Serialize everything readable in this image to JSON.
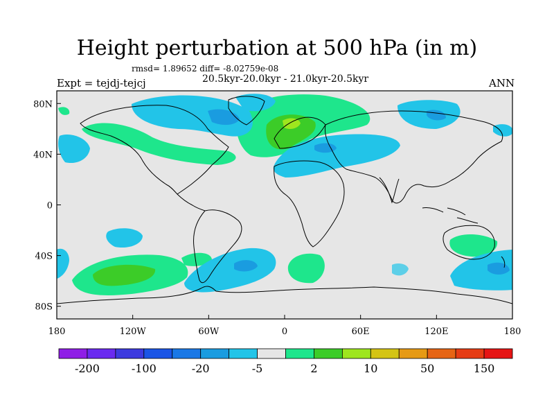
{
  "title": "Height perturbation at 500 hPa (in m)",
  "stats": "rmsd= 1.89652 diff= -8.02759e-08",
  "period": "20.5kyr-20.0kyr - 21.0kyr-20.5kyr",
  "experiment": "Expt = tejdj-tejcj",
  "season": "ANN",
  "lat_ticks": [
    {
      "label": "80N",
      "value": 80
    },
    {
      "label": "40N",
      "value": 40
    },
    {
      "label": "0",
      "value": 0
    },
    {
      "label": "40S",
      "value": -40
    },
    {
      "label": "80S",
      "value": -80
    }
  ],
  "lon_ticks": [
    {
      "label": "180",
      "value": -180
    },
    {
      "label": "120W",
      "value": -120
    },
    {
      "label": "60W",
      "value": -60
    },
    {
      "label": "0",
      "value": 0
    },
    {
      "label": "60E",
      "value": 60
    },
    {
      "label": "120E",
      "value": 120
    },
    {
      "label": "180",
      "value": 180
    }
  ],
  "colorbar": {
    "colors": [
      "#8f1ee6",
      "#6a2af0",
      "#3d3adf",
      "#1a55e6",
      "#1a78e6",
      "#1a9ce0",
      "#22c4e8",
      "#e6e6e6",
      "#1ee68c",
      "#3ccc28",
      "#9ee61e",
      "#d4c414",
      "#e69a14",
      "#e66414",
      "#e63c14",
      "#e61414"
    ],
    "labels": [
      {
        "text": "-200",
        "boundary": 1
      },
      {
        "text": "-100",
        "boundary": 3
      },
      {
        "text": "-20",
        "boundary": 5
      },
      {
        "text": "-5",
        "boundary": 7
      },
      {
        "text": "2",
        "boundary": 9
      },
      {
        "text": "10",
        "boundary": 11
      },
      {
        "text": "50",
        "boundary": 13
      },
      {
        "text": "150",
        "boundary": 15
      }
    ]
  },
  "field_colors": {
    "background": "#e6e6e6",
    "light_blue": "#22c4e8",
    "mid_blue": "#1a9ce0",
    "light_green": "#1ee68c",
    "green": "#3ccc28",
    "yellow_green": "#9ee61e"
  }
}
